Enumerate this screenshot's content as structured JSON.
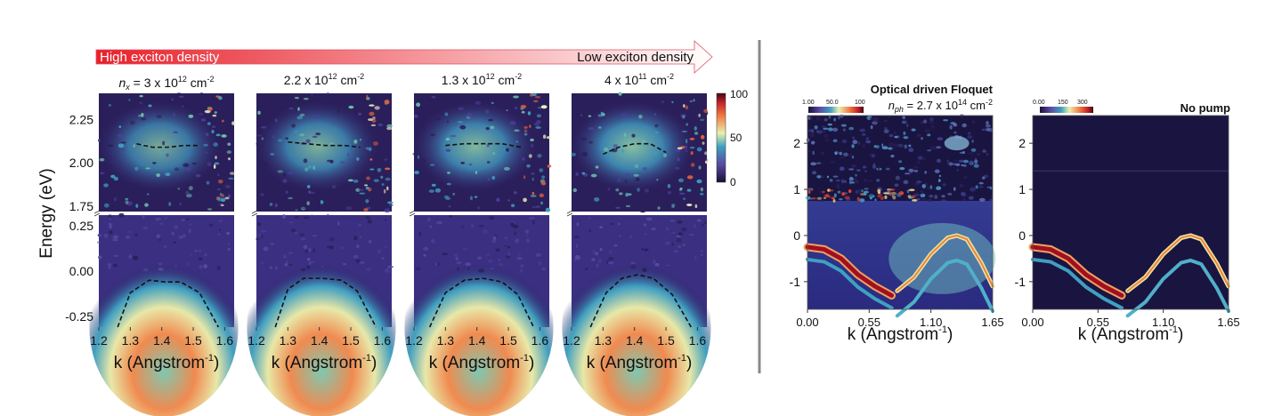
{
  "arrow": {
    "left_label": "High exciton density",
    "right_label": "Low exciton density",
    "color_start": "#e8202a",
    "color_end": "#ffffff"
  },
  "chart_data": [
    {
      "type": "heatmap",
      "group": "exciton-density-series",
      "ylabel": "Energy (eV)",
      "xlabel": "k (Angstrom",
      "xlabel_sup": "-1",
      "xlabel_close": ")",
      "xticks": [
        "1.2",
        "1.3",
        "1.4",
        "1.5",
        "1.6"
      ],
      "xlim": [
        1.2,
        1.63
      ],
      "upper_ylim": [
        1.72,
        2.4
      ],
      "upper_yticks": [
        "1.75",
        "2.00",
        "2.25"
      ],
      "lower_ylim": [
        -0.31,
        0.31
      ],
      "lower_yticks": [
        "-0.25",
        "0.00",
        "0.25"
      ],
      "colorbar": {
        "ticks": [
          "100",
          "50",
          "0"
        ],
        "colormap": "spectral"
      },
      "panels": [
        {
          "title_prefix": "n",
          "title_sub": "x",
          "title": " = 3 x 10",
          "title_sup": "12",
          "title_unit": " cm",
          "title_unit_sup": "-2",
          "exciton_k": [
            1.32,
            1.37,
            1.42,
            1.47,
            1.52
          ],
          "exciton_E": [
            2.11,
            2.09,
            2.09,
            2.1,
            2.1
          ],
          "valence_k": [
            1.26,
            1.3,
            1.36,
            1.41,
            1.46,
            1.52,
            1.58
          ],
          "valence_E": [
            -0.31,
            -0.12,
            -0.05,
            -0.06,
            -0.06,
            -0.12,
            -0.31
          ],
          "intensity": 0.7
        },
        {
          "title_prefix": "",
          "title_sub": "",
          "title": "2.2 x 10",
          "title_sup": "12",
          "title_unit": " cm",
          "title_unit_sup": "-2",
          "exciton_k": [
            1.3,
            1.36,
            1.42,
            1.48,
            1.53
          ],
          "exciton_E": [
            2.12,
            2.11,
            2.1,
            2.1,
            2.09
          ],
          "valence_k": [
            1.26,
            1.3,
            1.35,
            1.41,
            1.47,
            1.52,
            1.58
          ],
          "valence_E": [
            -0.31,
            -0.1,
            -0.04,
            -0.04,
            -0.05,
            -0.11,
            -0.31
          ],
          "intensity": 0.8
        },
        {
          "title_prefix": "",
          "title_sub": "",
          "title": "1.3 x 10",
          "title_sup": "12",
          "title_unit": " cm",
          "title_unit_sup": "-2",
          "exciton_k": [
            1.3,
            1.36,
            1.42,
            1.48,
            1.54
          ],
          "exciton_E": [
            2.1,
            2.11,
            2.11,
            2.11,
            2.09
          ],
          "valence_k": [
            1.25,
            1.3,
            1.36,
            1.42,
            1.48,
            1.53,
            1.58
          ],
          "valence_E": [
            -0.31,
            -0.12,
            -0.05,
            -0.04,
            -0.06,
            -0.13,
            -0.31
          ],
          "intensity": 0.9
        },
        {
          "title_prefix": "",
          "title_sub": "",
          "title": "4 x 10",
          "title_sup": "11",
          "title_unit": " cm",
          "title_unit_sup": "-2",
          "exciton_k": [
            1.3,
            1.35,
            1.4,
            1.45,
            1.5
          ],
          "exciton_E": [
            2.05,
            2.09,
            2.11,
            2.11,
            2.06
          ],
          "valence_k": [
            1.26,
            1.31,
            1.36,
            1.41,
            1.46,
            1.52,
            1.58
          ],
          "valence_E": [
            -0.31,
            -0.12,
            -0.04,
            -0.02,
            -0.04,
            -0.13,
            -0.31
          ],
          "intensity": 1.0
        }
      ]
    },
    {
      "type": "heatmap",
      "title": "Optical driven Floquet",
      "subtitle_prefix": "n",
      "subtitle_sub": "ph",
      "subtitle": " = 2.7 x 10",
      "subtitle_sup": "14",
      "subtitle_unit": " cm",
      "subtitle_unit_sup": "-2",
      "xlabel": "k (Angstrom",
      "xlabel_sup": "-1",
      "xlabel_close": ")",
      "xlim": [
        0,
        1.65
      ],
      "xticks": [
        "0.00",
        "0.55",
        "1.10",
        "1.65"
      ],
      "ylim": [
        -1.6,
        2.6
      ],
      "yticks": [
        "2",
        "1",
        "0",
        "-1"
      ],
      "colorbar": {
        "ticks": [
          "1.00",
          "50.0",
          "100"
        ],
        "colormap": "spectral",
        "placement": "top-left"
      },
      "band1_k": [
        0,
        0.15,
        0.3,
        0.45,
        0.6,
        0.75
      ],
      "band1_E": [
        -0.25,
        -0.3,
        -0.5,
        -0.85,
        -1.1,
        -1.3
      ],
      "band2_k": [
        0.8,
        0.95,
        1.1,
        1.25,
        1.33,
        1.42,
        1.55,
        1.65
      ],
      "band2_E": [
        -1.2,
        -0.9,
        -0.4,
        -0.05,
        0.0,
        -0.08,
        -0.6,
        -1.1
      ],
      "replica": {
        "k": 1.33,
        "E": 2.0
      }
    },
    {
      "type": "heatmap",
      "title": "No pump",
      "xlabel": "k (Angstrom",
      "xlabel_sup": "-1",
      "xlabel_close": ")",
      "xlim": [
        0,
        1.65
      ],
      "xticks": [
        "0.00",
        "0.55",
        "1.10",
        "1.65"
      ],
      "ylim": [
        -1.6,
        2.6
      ],
      "yticks": [
        "2",
        "1",
        "0",
        "-1"
      ],
      "colorbar": {
        "ticks": [
          "0.00",
          "150",
          "300"
        ],
        "colormap": "spectral",
        "placement": "top-left"
      },
      "band1_k": [
        0,
        0.15,
        0.3,
        0.45,
        0.6,
        0.75
      ],
      "band1_E": [
        -0.25,
        -0.3,
        -0.5,
        -0.85,
        -1.1,
        -1.3
      ],
      "band2_k": [
        0.8,
        0.95,
        1.1,
        1.25,
        1.33,
        1.42,
        1.55,
        1.65
      ],
      "band2_E": [
        -1.2,
        -0.9,
        -0.4,
        -0.05,
        0.0,
        -0.08,
        -0.6,
        -1.1
      ]
    }
  ]
}
